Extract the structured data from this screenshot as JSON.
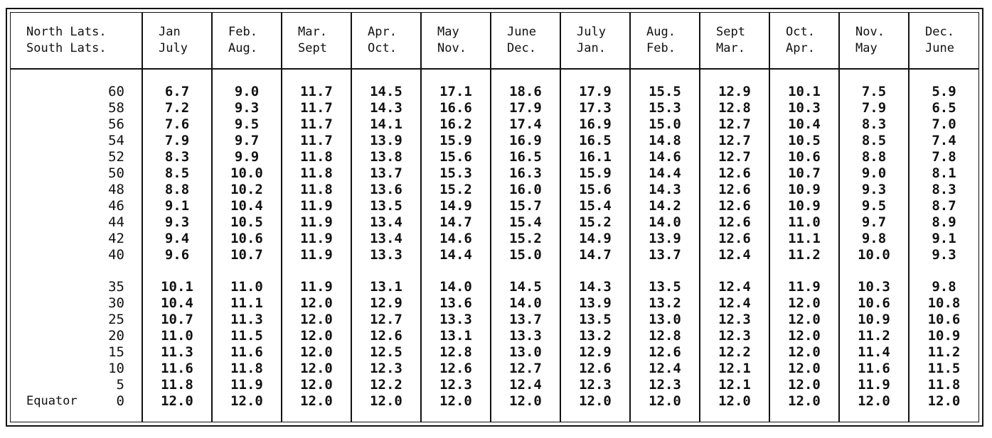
{
  "table": {
    "header": [
      [
        "North Lats.",
        "South Lats."
      ],
      [
        "Jan",
        "July"
      ],
      [
        "Feb.",
        "Aug."
      ],
      [
        "Mar.",
        "Sept"
      ],
      [
        "Apr.",
        "Oct."
      ],
      [
        "May",
        "Nov."
      ],
      [
        "June",
        "Dec."
      ],
      [
        "July",
        "Jan."
      ],
      [
        "Aug.",
        "Feb."
      ],
      [
        "Sept",
        "Mar."
      ],
      [
        "Oct.",
        "Apr."
      ],
      [
        "Nov.",
        "May"
      ],
      [
        "Dec.",
        "June"
      ]
    ],
    "equator_label": "Equator",
    "group1": [
      [
        "60",
        "6.7",
        "9.0",
        "11.7",
        "14.5",
        "17.1",
        "18.6",
        "17.9",
        "15.5",
        "12.9",
        "10.1",
        "7.5",
        "5.9"
      ],
      [
        "58",
        "7.2",
        "9.3",
        "11.7",
        "14.3",
        "16.6",
        "17.9",
        "17.3",
        "15.3",
        "12.8",
        "10.3",
        "7.9",
        "6.5"
      ],
      [
        "56",
        "7.6",
        "9.5",
        "11.7",
        "14.1",
        "16.2",
        "17.4",
        "16.9",
        "15.0",
        "12.7",
        "10.4",
        "8.3",
        "7.0"
      ],
      [
        "54",
        "7.9",
        "9.7",
        "11.7",
        "13.9",
        "15.9",
        "16.9",
        "16.5",
        "14.8",
        "12.7",
        "10.5",
        "8.5",
        "7.4"
      ],
      [
        "52",
        "8.3",
        "9.9",
        "11.8",
        "13.8",
        "15.6",
        "16.5",
        "16.1",
        "14.6",
        "12.7",
        "10.6",
        "8.8",
        "7.8"
      ],
      [
        "50",
        "8.5",
        "10.0",
        "11.8",
        "13.7",
        "15.3",
        "16.3",
        "15.9",
        "14.4",
        "12.6",
        "10.7",
        "9.0",
        "8.1"
      ],
      [
        "48",
        "8.8",
        "10.2",
        "11.8",
        "13.6",
        "15.2",
        "16.0",
        "15.6",
        "14.3",
        "12.6",
        "10.9",
        "9.3",
        "8.3"
      ],
      [
        "46",
        "9.1",
        "10.4",
        "11.9",
        "13.5",
        "14.9",
        "15.7",
        "15.4",
        "14.2",
        "12.6",
        "10.9",
        "9.5",
        "8.7"
      ],
      [
        "44",
        "9.3",
        "10.5",
        "11.9",
        "13.4",
        "14.7",
        "15.4",
        "15.2",
        "14.0",
        "12.6",
        "11.0",
        "9.7",
        "8.9"
      ],
      [
        "42",
        "9.4",
        "10.6",
        "11.9",
        "13.4",
        "14.6",
        "15.2",
        "14.9",
        "13.9",
        "12.6",
        "11.1",
        "9.8",
        "9.1"
      ],
      [
        "40",
        "9.6",
        "10.7",
        "11.9",
        "13.3",
        "14.4",
        "15.0",
        "14.7",
        "13.7",
        "12.4",
        "11.2",
        "10.0",
        "9.3"
      ]
    ],
    "group2": [
      [
        "35",
        "10.1",
        "11.0",
        "11.9",
        "13.1",
        "14.0",
        "14.5",
        "14.3",
        "13.5",
        "12.4",
        "11.9",
        "10.3",
        "9.8"
      ],
      [
        "30",
        "10.4",
        "11.1",
        "12.0",
        "12.9",
        "13.6",
        "14.0",
        "13.9",
        "13.2",
        "12.4",
        "12.0",
        "10.6",
        "10.8"
      ],
      [
        "25",
        "10.7",
        "11.3",
        "12.0",
        "12.7",
        "13.3",
        "13.7",
        "13.5",
        "13.0",
        "12.3",
        "12.0",
        "10.9",
        "10.6"
      ],
      [
        "20",
        "11.0",
        "11.5",
        "12.0",
        "12.6",
        "13.1",
        "13.3",
        "13.2",
        "12.8",
        "12.3",
        "12.0",
        "11.2",
        "10.9"
      ],
      [
        "15",
        "11.3",
        "11.6",
        "12.0",
        "12.5",
        "12.8",
        "13.0",
        "12.9",
        "12.6",
        "12.2",
        "12.0",
        "11.4",
        "11.2"
      ],
      [
        "10",
        "11.6",
        "11.8",
        "12.0",
        "12.3",
        "12.6",
        "12.7",
        "12.6",
        "12.4",
        "12.1",
        "12.0",
        "11.6",
        "11.5"
      ],
      [
        "5",
        "11.8",
        "11.9",
        "12.0",
        "12.2",
        "12.3",
        "12.4",
        "12.3",
        "12.3",
        "12.1",
        "12.0",
        "11.9",
        "11.8"
      ],
      [
        "0",
        "12.0",
        "12.0",
        "12.0",
        "12.0",
        "12.0",
        "12.0",
        "12.0",
        "12.0",
        "12.0",
        "12.0",
        "12.0",
        "12.0"
      ]
    ]
  }
}
